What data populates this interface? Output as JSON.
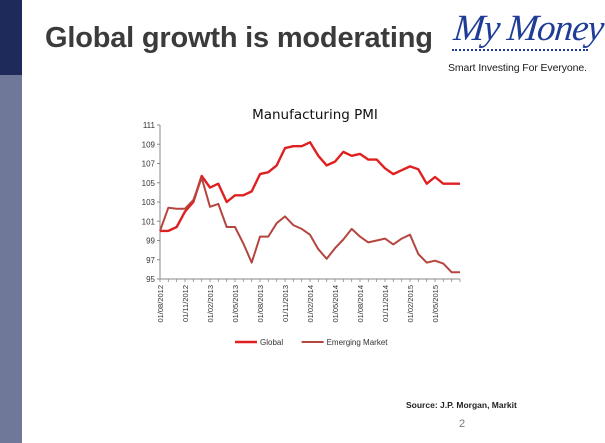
{
  "slide": {
    "title": "Global growth is moderating",
    "source": "Source: J.P. Morgan, Markit",
    "page_number": "2"
  },
  "logo": {
    "name": "My Money",
    "tagline": "Smart Investing For Everyone."
  },
  "colors": {
    "sidebar_dark": "#1e2a5a",
    "sidebar_light": "#6f7899",
    "title_text": "#3b3b3b",
    "logo_blue": "#1f3c97",
    "global_series": "#e02020",
    "emerging_series": "#b5453f"
  },
  "chart_data": {
    "type": "line",
    "title": "Manufacturing PMI",
    "xlabel": "",
    "ylabel": "",
    "ylim": [
      95,
      111
    ],
    "yticks": [
      95,
      97,
      99,
      101,
      103,
      105,
      107,
      109,
      111
    ],
    "xtick_labels": [
      "01/08/2012",
      "01/11/2012",
      "01/02/2013",
      "01/05/2013",
      "01/08/2013",
      "01/11/2013",
      "01/02/2014",
      "01/05/2014",
      "01/08/2014",
      "01/11/2014",
      "01/02/2015",
      "01/05/2015"
    ],
    "x": [
      "08/2012",
      "09/2012",
      "10/2012",
      "11/2012",
      "12/2012",
      "01/2013",
      "02/2013",
      "03/2013",
      "04/2013",
      "05/2013",
      "06/2013",
      "07/2013",
      "08/2013",
      "09/2013",
      "10/2013",
      "11/2013",
      "12/2013",
      "01/2014",
      "02/2014",
      "03/2014",
      "04/2014",
      "05/2014",
      "06/2014",
      "07/2014",
      "08/2014",
      "09/2014",
      "10/2014",
      "11/2014",
      "12/2014",
      "01/2015",
      "02/2015",
      "03/2015",
      "04/2015",
      "05/2015",
      "06/2015",
      "07/2015",
      "08/2015"
    ],
    "grid": false,
    "legend_position": "bottom",
    "series": [
      {
        "name": "Global",
        "color": "#e02020",
        "values": [
          100,
          100,
          100.4,
          102,
          103,
          105.7,
          104.5,
          104.9,
          103,
          103.7,
          103.7,
          104.1,
          105.9,
          106.1,
          106.8,
          108.6,
          108.8,
          108.8,
          109.2,
          107.8,
          106.8,
          107.2,
          108.2,
          107.8,
          108,
          107.4,
          107.4,
          106.5,
          105.9,
          106.3,
          106.7,
          106.4,
          104.9,
          105.6,
          104.9,
          104.9,
          104.9
        ]
      },
      {
        "name": "Emerging Market",
        "color": "#b5453f",
        "values": [
          100,
          102.4,
          102.3,
          102.3,
          103.2,
          105.5,
          102.5,
          102.8,
          100.4,
          100.4,
          98.7,
          96.7,
          99.4,
          99.4,
          100.8,
          101.5,
          100.6,
          100.2,
          99.6,
          98.1,
          97.1,
          98.2,
          99.1,
          100.2,
          99.4,
          98.8,
          99,
          99.2,
          98.6,
          99.2,
          99.6,
          97.6,
          96.7,
          96.9,
          96.6,
          95.7,
          95.7
        ]
      }
    ]
  }
}
